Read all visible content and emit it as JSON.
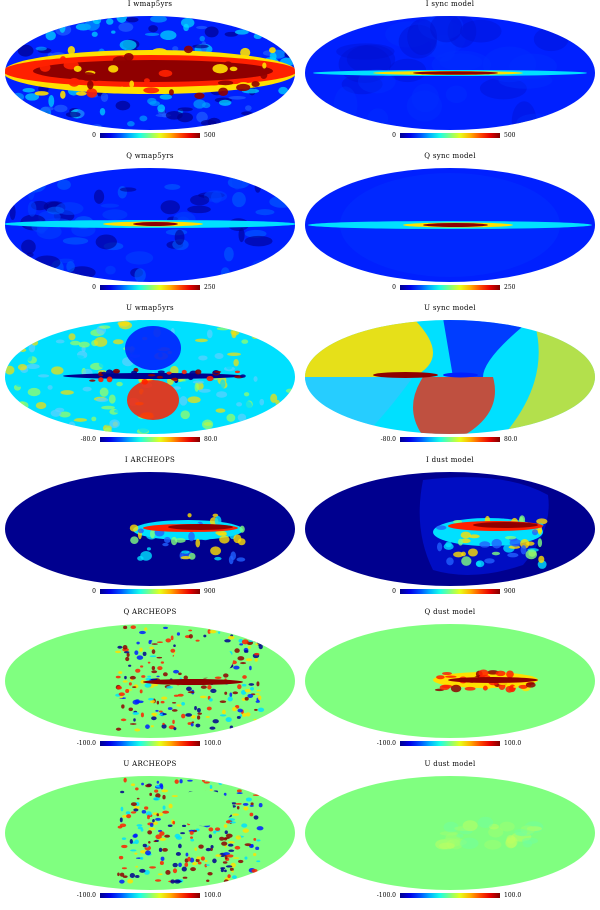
{
  "panels": [
    {
      "title": "I wmap5yrs",
      "min": "0",
      "max": "500",
      "kind": "I_wmap"
    },
    {
      "title": "I sync model",
      "min": "0",
      "max": "500",
      "kind": "I_sync"
    },
    {
      "title": "Q wmap5yrs",
      "min": "0",
      "max": "250",
      "kind": "Q_wmap"
    },
    {
      "title": "Q sync model",
      "min": "0",
      "max": "250",
      "kind": "Q_sync"
    },
    {
      "title": "U wmap5yrs",
      "min": "-80.0",
      "max": "80.0",
      "kind": "U_wmap"
    },
    {
      "title": "U sync model",
      "min": "-80.0",
      "max": "80.0",
      "kind": "U_sync"
    },
    {
      "title": "I ARCHEOPS",
      "min": "0",
      "max": "900",
      "kind": "I_arch"
    },
    {
      "title": "I dust model",
      "min": "0",
      "max": "900",
      "kind": "I_dust"
    },
    {
      "title": "Q ARCHEOPS",
      "min": "-100.0",
      "max": "100.0",
      "kind": "Q_arch"
    },
    {
      "title": "Q dust model",
      "min": "-100.0",
      "max": "100.0",
      "kind": "Q_dust"
    },
    {
      "title": "U ARCHEOPS",
      "min": "-100.0",
      "max": "100.0",
      "kind": "U_arch"
    },
    {
      "title": "U dust model",
      "min": "-100.0",
      "max": "100.0",
      "kind": "U_dust"
    }
  ],
  "colormap": "jet",
  "colors": {
    "darkblue": "#00008f",
    "blue": "#0020ff",
    "cyan": "#00e0ff",
    "green": "#80ff80",
    "yellow": "#ffe000",
    "red": "#ff2000",
    "darkred": "#8f0000"
  }
}
